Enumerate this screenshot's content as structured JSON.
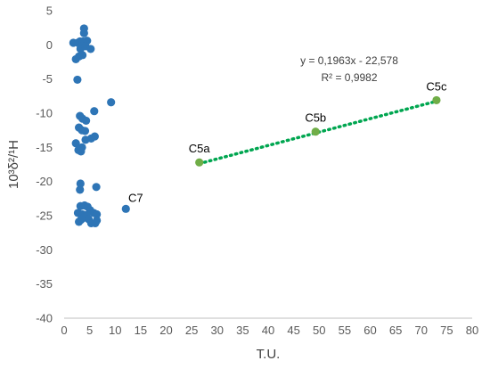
{
  "chart_data": {
    "type": "scatter",
    "title": "",
    "xlabel": "T.U.",
    "ylabel": "10³δ²/¹H",
    "xlim": [
      0,
      80
    ],
    "ylim": [
      -40,
      5
    ],
    "xticks": [
      "0",
      "5",
      "10",
      "15",
      "20",
      "25",
      "30",
      "35",
      "40",
      "45",
      "50",
      "55",
      "60",
      "65",
      "70",
      "75",
      "80"
    ],
    "yticks": [
      "5",
      "0",
      "-5",
      "-10",
      "-15",
      "-20",
      "-25",
      "-30",
      "-35",
      "-40"
    ],
    "grid": false,
    "legend": "none",
    "colors": {
      "blue": "#2E75B6",
      "green": "#70AD47",
      "trendline": "#00A650",
      "axis": "#bfbfbf"
    },
    "series": [
      {
        "color": "#2E75B6",
        "points": [
          [
            1.8,
            0.3
          ],
          [
            2.7,
            0.3
          ],
          [
            3.1,
            0.5
          ],
          [
            3.7,
            0.5
          ],
          [
            4.5,
            0.6
          ],
          [
            3.9,
            2.4
          ],
          [
            3.9,
            1.7
          ],
          [
            3.5,
            -0.2
          ],
          [
            3.2,
            -0.6
          ],
          [
            4.2,
            -0.2
          ],
          [
            5.2,
            -0.6
          ],
          [
            3.6,
            -1.5
          ],
          [
            2.9,
            -1.7
          ],
          [
            2.3,
            -2.1
          ],
          [
            2.6,
            -5.1
          ],
          [
            9.2,
            -8.4
          ],
          [
            5.9,
            -9.7
          ],
          [
            3.1,
            -10.4
          ],
          [
            3.6,
            -10.8
          ],
          [
            4.3,
            -11.1
          ],
          [
            2.9,
            -12.1
          ],
          [
            3.5,
            -12.5
          ],
          [
            4.1,
            -12.6
          ],
          [
            6.0,
            -13.4
          ],
          [
            5.3,
            -13.7
          ],
          [
            4.2,
            -13.9
          ],
          [
            2.3,
            -14.4
          ],
          [
            3.5,
            -15.0
          ],
          [
            2.8,
            -15.4
          ],
          [
            3.3,
            -15.6
          ],
          [
            3.2,
            -20.3
          ],
          [
            6.3,
            -20.8
          ],
          [
            3.1,
            -21.2
          ],
          [
            3.2,
            -23.6
          ],
          [
            4.0,
            -23.5
          ],
          [
            4.6,
            -23.7
          ],
          [
            5.1,
            -24.2
          ],
          [
            2.7,
            -24.6
          ],
          [
            3.6,
            -24.8
          ],
          [
            4.4,
            -24.9
          ],
          [
            5.8,
            -24.6
          ],
          [
            6.4,
            -24.8
          ],
          [
            3.9,
            -25.3
          ],
          [
            4.8,
            -25.5
          ],
          [
            2.9,
            -25.9
          ],
          [
            3.3,
            -25.6
          ],
          [
            5.3,
            -26.1
          ],
          [
            6.1,
            -26.1
          ],
          [
            6.4,
            -25.7
          ],
          [
            12.1,
            -24.0
          ]
        ]
      },
      {
        "color": "#70AD47",
        "points": [
          [
            26.5,
            -17.2
          ],
          [
            49.3,
            -12.7
          ],
          [
            73.0,
            -8.1
          ]
        ]
      }
    ],
    "trendline": {
      "slope": 0.1963,
      "intercept": -22.578,
      "x_range": [
        26.5,
        73.0
      ],
      "equation": "y = 0,1963x - 22,578",
      "r2": "R² = 0,9982"
    },
    "annotations": [
      {
        "text": "C5a",
        "x": 26.5,
        "y": -17.2,
        "anchor": "above"
      },
      {
        "text": "C5b",
        "x": 49.3,
        "y": -12.7,
        "anchor": "above"
      },
      {
        "text": "C5c",
        "x": 73.0,
        "y": -8.1,
        "anchor": "above"
      },
      {
        "text": "C7",
        "x": 12.1,
        "y": -24.0,
        "anchor": "above-right"
      }
    ]
  }
}
